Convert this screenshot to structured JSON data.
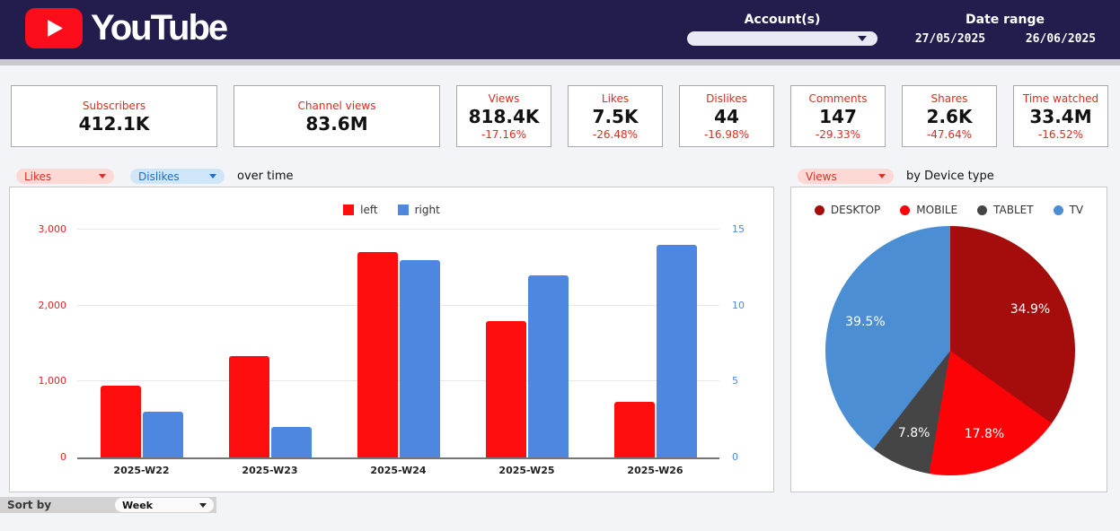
{
  "header": {
    "brand": "YouTube",
    "accounts_label": "Account(s)",
    "date_range_label": "Date range",
    "date_start": "27/05/2025",
    "date_end": "26/06/2025"
  },
  "colors": {
    "header_bg": "#231d4e",
    "brand_red": "#fc0d1b",
    "kpi_accent_red": "#e02b20",
    "bar_left": "#fd0d0d",
    "bar_right": "#4d87e0",
    "left_axis": "#e02424",
    "right_axis": "#4e88e3"
  },
  "kpis": [
    {
      "label": "Subscribers",
      "value": "412.1K",
      "delta": "",
      "wide": true
    },
    {
      "label": "Channel views",
      "value": "83.6M",
      "delta": "",
      "wide": true
    },
    {
      "label": "Views",
      "value": "818.4K",
      "delta": "-17.16%",
      "wide": false
    },
    {
      "label": "Likes",
      "value": "7.5K",
      "delta": "-26.48%",
      "wide": false
    },
    {
      "label": "Dislikes",
      "value": "44",
      "delta": "-16.98%",
      "wide": false
    },
    {
      "label": "Comments",
      "value": "147",
      "delta": "-29.33%",
      "wide": false
    },
    {
      "label": "Shares",
      "value": "2.6K",
      "delta": "-47.64%",
      "wide": false
    },
    {
      "label": "Time watched",
      "value": "33.4M",
      "delta": "-16.52%",
      "wide": false
    }
  ],
  "controls": {
    "metric_dropdown_1": "Likes",
    "metric_dropdown_2": "Dislikes",
    "over_time_label": "over time",
    "pie_metric_dropdown": "Views",
    "by_device_label": "by Device type"
  },
  "sort": {
    "label": "Sort by",
    "value": "Week"
  },
  "chart_data": [
    {
      "type": "bar",
      "title": "Likes / Dislikes over time",
      "categories": [
        "2025-W22",
        "2025-W23",
        "2025-W24",
        "2025-W25",
        "2025-W26"
      ],
      "series": [
        {
          "name": "left",
          "axis": "left",
          "color": "#fd0d0d",
          "values": [
            950,
            1330,
            2700,
            1800,
            730
          ]
        },
        {
          "name": "right",
          "axis": "right",
          "color": "#4d87e0",
          "values": [
            3,
            2,
            13,
            12,
            14
          ]
        }
      ],
      "left_axis": {
        "ticks": [
          "0",
          "1,000",
          "2,000",
          "3,000"
        ],
        "min": 0,
        "max": 3000,
        "color": "#e02424"
      },
      "right_axis": {
        "ticks": [
          "0",
          "5",
          "10",
          "15"
        ],
        "min": 0,
        "max": 15,
        "color": "#4e88e3"
      },
      "legend": [
        "left",
        "right"
      ],
      "grid": true,
      "legend_position": "top-center"
    },
    {
      "type": "pie",
      "title": "Views by Device type",
      "labels": [
        "DESKTOP",
        "MOBILE",
        "TABLET",
        "TV"
      ],
      "values": [
        34.9,
        17.8,
        7.8,
        39.5
      ],
      "slice_labels": [
        "34.9%",
        "17.8%",
        "7.8%",
        "39.5%"
      ],
      "colors": [
        "#a50d0d",
        "#fb0307",
        "#454545",
        "#4b8ed4"
      ],
      "legend_position": "top-center",
      "start_angle_deg": 0,
      "direction": "clockwise"
    }
  ]
}
